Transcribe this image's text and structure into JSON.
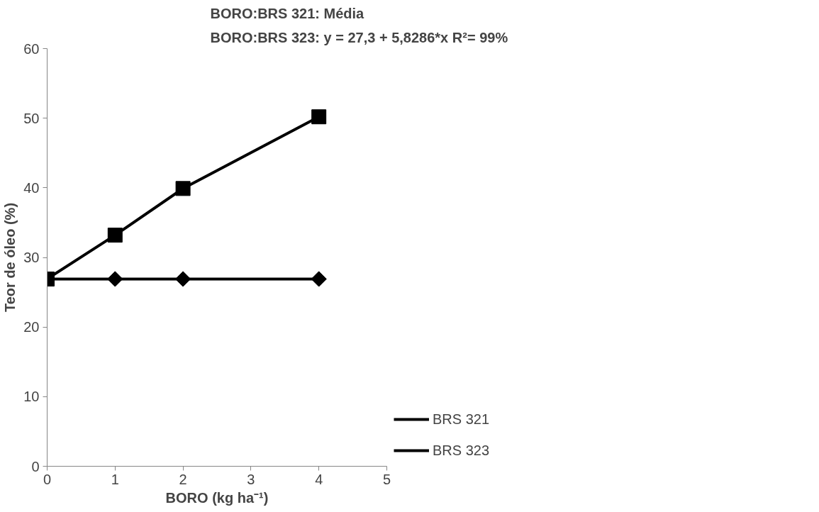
{
  "chart_data": {
    "type": "line",
    "title": "BORO:BRS 321:  Média",
    "subtitle": "BORO:BRS 323:   y = 27,3 + 5,8286*x R²= 99%",
    "xlabel": "BORO (kg ha⁻¹)",
    "ylabel": "Teor de óleo (%)",
    "x": [
      0,
      1,
      2,
      4
    ],
    "series": [
      {
        "name": "BRS 321",
        "color": "#000000",
        "marker": "diamond",
        "values": [
          26.9,
          26.9,
          26.9,
          26.9
        ]
      },
      {
        "name": "BRS 323",
        "color": "#000000",
        "marker": "square",
        "values": [
          26.9,
          33.2,
          39.9,
          50.2
        ]
      }
    ],
    "xlim": [
      0,
      5
    ],
    "ylim": [
      0,
      60
    ],
    "xticks": [
      0,
      1,
      2,
      3,
      4,
      5
    ],
    "yticks": [
      0,
      10,
      20,
      30,
      40,
      50,
      60
    ],
    "grid": false,
    "legend": "right",
    "line_style": "solid"
  }
}
